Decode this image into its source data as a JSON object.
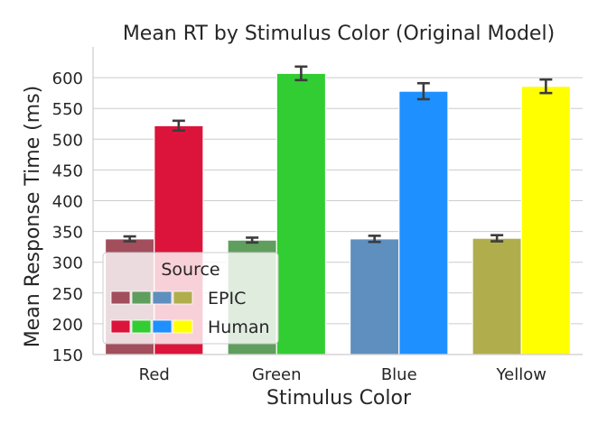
{
  "chart_data": {
    "type": "bar",
    "title": "Mean RT by Stimulus Color (Original Model)",
    "xlabel": "Stimulus Color",
    "ylabel": "Mean Response Time (ms)",
    "ylim": [
      150,
      650
    ],
    "yticks": [
      150,
      200,
      250,
      300,
      350,
      400,
      450,
      500,
      550,
      600
    ],
    "grid": "horizontal",
    "categories": [
      "Red",
      "Green",
      "Blue",
      "Yellow"
    ],
    "series": [
      {
        "name": "EPIC",
        "values": [
          338,
          336,
          338,
          339
        ],
        "errors": [
          4,
          4,
          5,
          5
        ],
        "colors": [
          "#a24e5c",
          "#5f9e5c",
          "#5f8fbf",
          "#b0ae4c"
        ]
      },
      {
        "name": "Human",
        "values": [
          522,
          607,
          578,
          586
        ],
        "errors": [
          8,
          11,
          13,
          11
        ],
        "colors": [
          "#dc143c",
          "#32cd32",
          "#1e90ff",
          "#ffff00"
        ]
      }
    ],
    "legend": {
      "title": "Source",
      "placement": "lower-left"
    }
  }
}
